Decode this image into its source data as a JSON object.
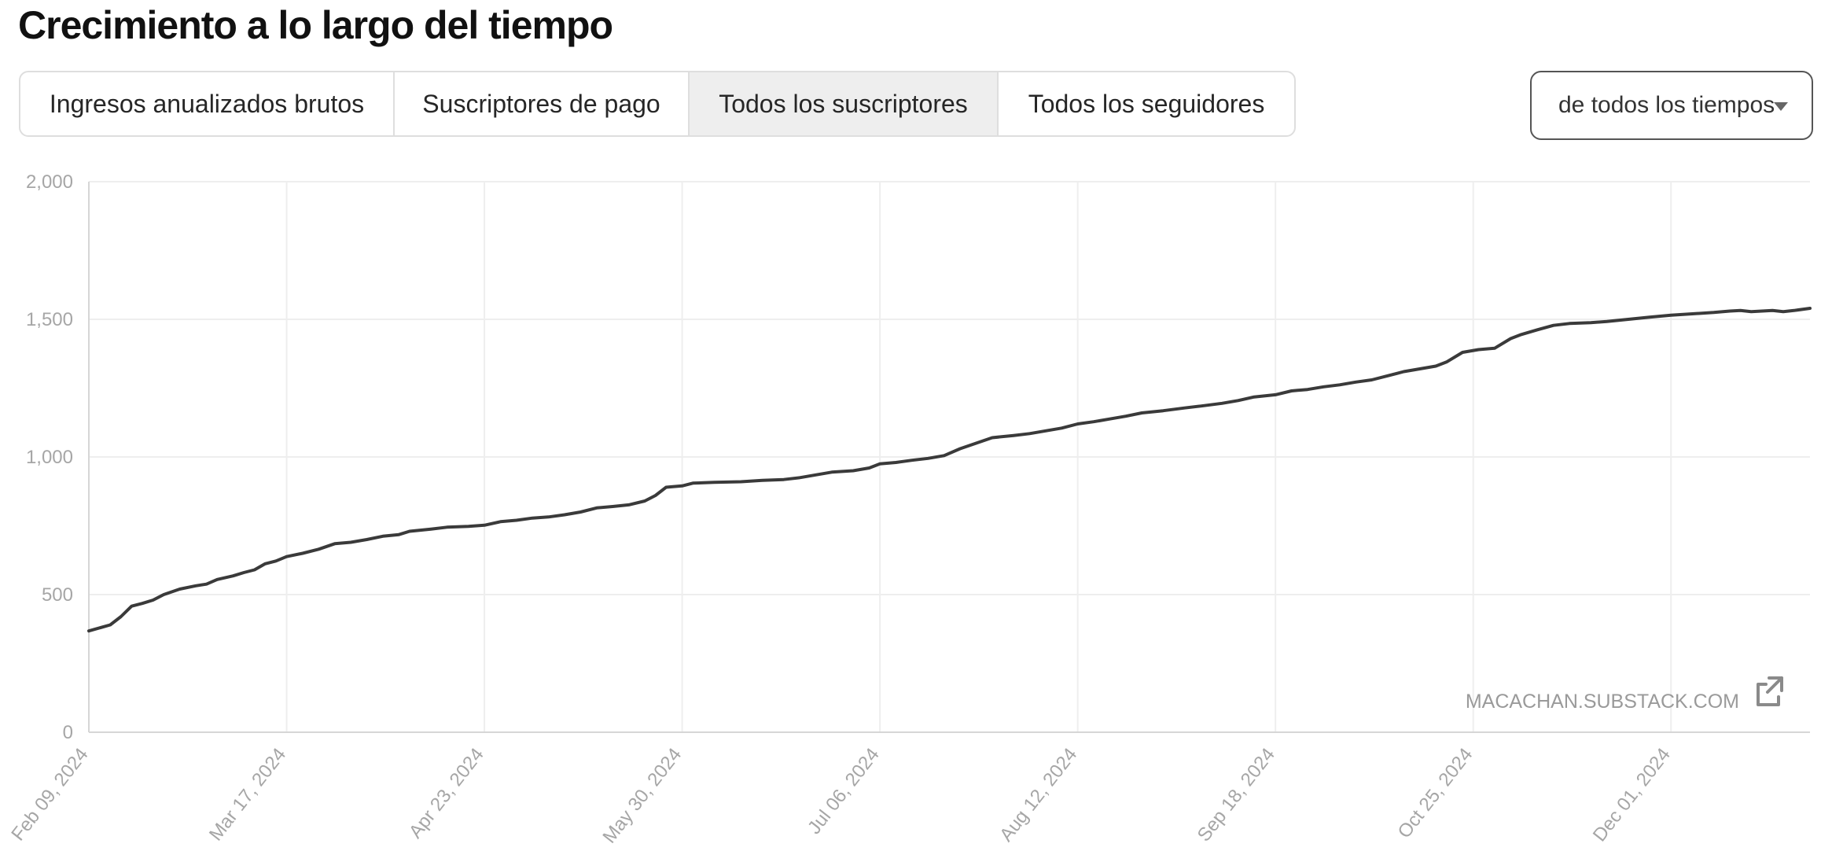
{
  "page": {
    "title": "Crecimiento a lo largo del tiempo"
  },
  "tabs": [
    {
      "label": "Ingresos anualizados brutos",
      "active": false
    },
    {
      "label": "Suscriptores de pago",
      "active": false
    },
    {
      "label": "Todos los suscriptores",
      "active": true
    },
    {
      "label": "Todos los seguidores",
      "active": false
    }
  ],
  "range_select": {
    "value": "de todos los tiempos",
    "icon": "triangle-down-icon"
  },
  "watermark": {
    "text": "MACACHAN.SUBSTACK.COM",
    "icon": "external-link-icon"
  },
  "colors": {
    "line": "#3a3a3a",
    "grid": "#eeeeee",
    "axis": "#d6d6d6",
    "active_tab": "#eeeeee"
  },
  "chart_data": {
    "type": "line",
    "title": "",
    "xlabel": "",
    "ylabel": "",
    "ylim": [
      0,
      2000
    ],
    "xlim": [
      "2024-02-09",
      "2024-12-27"
    ],
    "y_ticks": [
      0,
      500,
      1000,
      1500,
      2000
    ],
    "y_tick_labels": [
      "0",
      "500",
      "1,000",
      "1,500",
      "2,000"
    ],
    "x_ticks": [
      "2024-02-09",
      "2024-03-17",
      "2024-04-23",
      "2024-05-30",
      "2024-07-06",
      "2024-08-12",
      "2024-09-18",
      "2024-10-25",
      "2024-12-01"
    ],
    "x_tick_labels": [
      "Feb 09, 2024",
      "Mar 17, 2024",
      "Apr 23, 2024",
      "May 30, 2024",
      "Jul 06, 2024",
      "Aug 12, 2024",
      "Sep 18, 2024",
      "Oct 25, 2024",
      "Dec 01, 2024"
    ],
    "grid": true,
    "legend": "none",
    "series": [
      {
        "points": [
          [
            "2024-02-09",
            368
          ],
          [
            "2024-02-13",
            390
          ],
          [
            "2024-02-15",
            420
          ],
          [
            "2024-02-17",
            458
          ],
          [
            "2024-02-19",
            468
          ],
          [
            "2024-02-21",
            480
          ],
          [
            "2024-02-23",
            500
          ],
          [
            "2024-02-26",
            520
          ],
          [
            "2024-02-29",
            532
          ],
          [
            "2024-03-02",
            538
          ],
          [
            "2024-03-04",
            555
          ],
          [
            "2024-03-07",
            568
          ],
          [
            "2024-03-09",
            580
          ],
          [
            "2024-03-11",
            590
          ],
          [
            "2024-03-13",
            612
          ],
          [
            "2024-03-15",
            622
          ],
          [
            "2024-03-17",
            638
          ],
          [
            "2024-03-20",
            650
          ],
          [
            "2024-03-23",
            665
          ],
          [
            "2024-03-26",
            685
          ],
          [
            "2024-03-29",
            690
          ],
          [
            "2024-04-01",
            700
          ],
          [
            "2024-04-04",
            712
          ],
          [
            "2024-04-07",
            718
          ],
          [
            "2024-04-09",
            730
          ],
          [
            "2024-04-13",
            738
          ],
          [
            "2024-04-16",
            745
          ],
          [
            "2024-04-20",
            748
          ],
          [
            "2024-04-23",
            752
          ],
          [
            "2024-04-26",
            765
          ],
          [
            "2024-04-29",
            770
          ],
          [
            "2024-05-02",
            778
          ],
          [
            "2024-05-05",
            782
          ],
          [
            "2024-05-08",
            790
          ],
          [
            "2024-05-11",
            800
          ],
          [
            "2024-05-14",
            815
          ],
          [
            "2024-05-17",
            820
          ],
          [
            "2024-05-20",
            826
          ],
          [
            "2024-05-23",
            840
          ],
          [
            "2024-05-25",
            860
          ],
          [
            "2024-05-27",
            890
          ],
          [
            "2024-05-30",
            895
          ],
          [
            "2024-06-01",
            905
          ],
          [
            "2024-06-05",
            908
          ],
          [
            "2024-06-10",
            910
          ],
          [
            "2024-06-14",
            915
          ],
          [
            "2024-06-18",
            918
          ],
          [
            "2024-06-21",
            925
          ],
          [
            "2024-06-24",
            935
          ],
          [
            "2024-06-27",
            945
          ],
          [
            "2024-07-01",
            950
          ],
          [
            "2024-07-04",
            960
          ],
          [
            "2024-07-06",
            975
          ],
          [
            "2024-07-09",
            980
          ],
          [
            "2024-07-12",
            988
          ],
          [
            "2024-07-15",
            995
          ],
          [
            "2024-07-18",
            1005
          ],
          [
            "2024-07-21",
            1030
          ],
          [
            "2024-07-24",
            1050
          ],
          [
            "2024-07-27",
            1070
          ],
          [
            "2024-07-31",
            1078
          ],
          [
            "2024-08-03",
            1085
          ],
          [
            "2024-08-06",
            1095
          ],
          [
            "2024-08-09",
            1105
          ],
          [
            "2024-08-12",
            1120
          ],
          [
            "2024-08-15",
            1128
          ],
          [
            "2024-08-18",
            1138
          ],
          [
            "2024-08-21",
            1148
          ],
          [
            "2024-08-24",
            1160
          ],
          [
            "2024-08-28",
            1168
          ],
          [
            "2024-09-01",
            1178
          ],
          [
            "2024-09-04",
            1185
          ],
          [
            "2024-09-08",
            1195
          ],
          [
            "2024-09-11",
            1205
          ],
          [
            "2024-09-14",
            1218
          ],
          [
            "2024-09-18",
            1226
          ],
          [
            "2024-09-21",
            1240
          ],
          [
            "2024-09-24",
            1245
          ],
          [
            "2024-09-27",
            1255
          ],
          [
            "2024-09-30",
            1262
          ],
          [
            "2024-10-03",
            1272
          ],
          [
            "2024-10-06",
            1280
          ],
          [
            "2024-10-09",
            1295
          ],
          [
            "2024-10-12",
            1310
          ],
          [
            "2024-10-15",
            1320
          ],
          [
            "2024-10-18",
            1330
          ],
          [
            "2024-10-20",
            1345
          ],
          [
            "2024-10-23",
            1380
          ],
          [
            "2024-10-26",
            1390
          ],
          [
            "2024-10-29",
            1395
          ],
          [
            "2024-11-01",
            1430
          ],
          [
            "2024-11-03",
            1445
          ],
          [
            "2024-11-06",
            1462
          ],
          [
            "2024-11-09",
            1478
          ],
          [
            "2024-11-12",
            1485
          ],
          [
            "2024-11-16",
            1488
          ],
          [
            "2024-11-19",
            1492
          ],
          [
            "2024-11-23",
            1500
          ],
          [
            "2024-11-27",
            1508
          ],
          [
            "2024-12-01",
            1515
          ],
          [
            "2024-12-05",
            1520
          ],
          [
            "2024-12-09",
            1525
          ],
          [
            "2024-12-12",
            1530
          ],
          [
            "2024-12-14",
            1532
          ],
          [
            "2024-12-16",
            1528
          ],
          [
            "2024-12-18",
            1530
          ],
          [
            "2024-12-20",
            1532
          ],
          [
            "2024-12-22",
            1528
          ],
          [
            "2024-12-24",
            1532
          ],
          [
            "2024-12-27",
            1540
          ]
        ]
      }
    ]
  }
}
